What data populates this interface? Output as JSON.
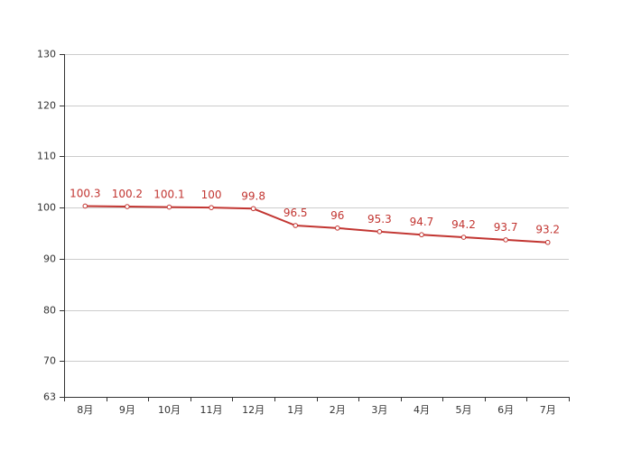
{
  "chart_data": {
    "type": "line",
    "categories": [
      "8月",
      "9月",
      "10月",
      "11月",
      "12月",
      "1月",
      "2月",
      "3月",
      "4月",
      "5月",
      "6月",
      "7月"
    ],
    "series": [
      {
        "values": [
          100.3,
          100.2,
          100.1,
          100,
          99.8,
          96.5,
          96,
          95.3,
          94.7,
          94.2,
          93.7,
          93.2
        ]
      }
    ],
    "data_labels": [
      "100.3",
      "100.2",
      "100.1",
      "100",
      "99.8",
      "96.5",
      "96",
      "95.3",
      "94.7",
      "94.2",
      "93.7",
      "93.2"
    ],
    "y_ticks": [
      63,
      70,
      80,
      90,
      100,
      110,
      120,
      130
    ],
    "y_tick_labels": [
      "63",
      "70",
      "80",
      "90",
      "100",
      "110",
      "120",
      "130"
    ],
    "ylim": [
      63,
      130
    ],
    "grid": true,
    "legend": "none",
    "colors": {
      "line": "#c23531",
      "marker_fill": "#ffffff",
      "grid": "#cccccc",
      "axis": "#333333",
      "label": "#c23531"
    }
  }
}
